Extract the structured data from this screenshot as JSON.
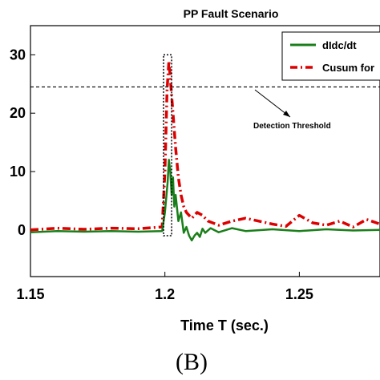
{
  "chart_data": {
    "type": "line",
    "title": "PP Fault Scenario",
    "xlabel": "Time T (sec.)",
    "ylabel": "",
    "panel_label": "(B)",
    "xlim": [
      1.15,
      1.28
    ],
    "ylim": [
      -8,
      35
    ],
    "xticks": [
      1.15,
      1.2,
      1.25
    ],
    "xtick_labels": [
      "1.15",
      "1.2",
      "1.25"
    ],
    "yticks": [
      0,
      10,
      20,
      30
    ],
    "ytick_labels": [
      "0",
      "10",
      "20",
      "30"
    ],
    "legend": [
      "dIdc/dt",
      "Cusum for"
    ],
    "legend_position": "top-right",
    "threshold": {
      "y": 24.5,
      "label": "Detection Threshold"
    },
    "highlight_box": {
      "x": [
        1.1995,
        1.2025
      ],
      "y": [
        -1,
        30
      ]
    },
    "series": [
      {
        "name": "dIdc/dt",
        "color": "#1a7f1a",
        "style": "solid",
        "x": [
          1.15,
          1.16,
          1.17,
          1.18,
          1.19,
          1.199,
          1.2,
          1.201,
          1.2015,
          1.202,
          1.2025,
          1.203,
          1.2035,
          1.204,
          1.205,
          1.206,
          1.207,
          1.208,
          1.209,
          1.21,
          1.211,
          1.212,
          1.213,
          1.214,
          1.215,
          1.217,
          1.22,
          1.225,
          1.23,
          1.24,
          1.25,
          1.26,
          1.27,
          1.28
        ],
        "y": [
          -0.4,
          -0.2,
          -0.3,
          -0.2,
          -0.3,
          -0.2,
          3,
          8,
          12,
          10,
          6,
          9,
          4,
          6,
          1.5,
          3,
          -0.5,
          0.5,
          -1,
          -1.8,
          -1,
          -0.5,
          -1.2,
          0.2,
          -0.5,
          0.3,
          -0.4,
          0.3,
          -0.2,
          0.1,
          -0.2,
          0.1,
          -0.1,
          0
        ]
      },
      {
        "name": "Cusum for",
        "color": "#dd0000",
        "style": "dashdot",
        "x": [
          1.15,
          1.16,
          1.17,
          1.18,
          1.19,
          1.199,
          1.2,
          1.2008,
          1.2015,
          1.202,
          1.203,
          1.204,
          1.205,
          1.206,
          1.207,
          1.208,
          1.21,
          1.212,
          1.214,
          1.216,
          1.22,
          1.225,
          1.23,
          1.24,
          1.245,
          1.25,
          1.255,
          1.26,
          1.265,
          1.27,
          1.275,
          1.28
        ],
        "y": [
          0,
          0.3,
          0.1,
          0.3,
          0.2,
          0.5,
          10,
          24,
          29,
          26,
          20,
          14,
          9,
          6,
          4,
          3,
          2,
          3,
          2.5,
          1.5,
          0.8,
          1.5,
          2,
          1,
          0.6,
          2.5,
          1.2,
          0.8,
          1.5,
          0.5,
          1.8,
          1
        ]
      }
    ]
  }
}
